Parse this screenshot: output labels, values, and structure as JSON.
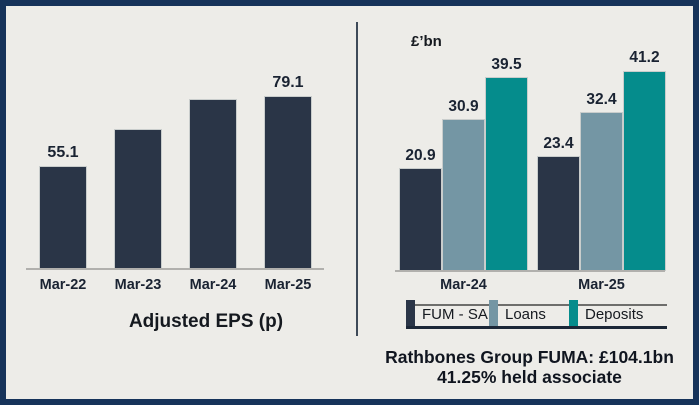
{
  "page": {
    "background": "#edece8",
    "frame_color": "#16335a",
    "divider_color": "#3e4a58"
  },
  "palette": {
    "navy": "#2a3547",
    "steel": "#7496a4",
    "teal": "#058c8c",
    "axis_line": "#b1b0ad",
    "text_dark": "#1a2332"
  },
  "chart_data": [
    {
      "id": "adjusted-eps",
      "type": "bar",
      "title": "Adjusted EPS (p)",
      "categories": [
        "Mar-22",
        "Mar-23",
        "Mar-24",
        "Mar-25"
      ],
      "values": [
        55.1,
        67.8,
        78.1,
        79.1
      ],
      "data_labels": [
        "55.1",
        "",
        "",
        "79.1"
      ],
      "bar_color_key": "navy",
      "ylim": [
        20,
        100
      ],
      "grid": false,
      "legend_position": "none"
    },
    {
      "id": "group-funding-fum",
      "type": "bar",
      "unit_label": "£’bn",
      "categories": [
        "Mar-24",
        "Mar-25"
      ],
      "series": [
        {
          "name": "FUM - SA",
          "color_key": "navy",
          "values": [
            20.9,
            23.4
          ]
        },
        {
          "name": "Loans",
          "color_key": "steel",
          "values": [
            30.9,
            32.4
          ]
        },
        {
          "name": "Deposits",
          "color_key": "teal",
          "values": [
            39.5,
            41.2
          ]
        }
      ],
      "data_labels_shown": true,
      "ylim": [
        0,
        45
      ],
      "grid": false,
      "legend_position": "bottom"
    }
  ],
  "footnote": {
    "line1": "Rathbones Group FUMA: £104.1bn",
    "line2": "41.25% held associate"
  }
}
